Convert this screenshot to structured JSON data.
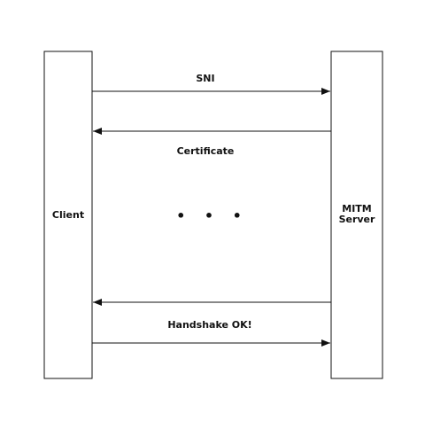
{
  "diagram": {
    "participants": {
      "client": "Client",
      "server_line1": "MITM",
      "server_line2": "Server"
    },
    "messages": [
      {
        "label": "SNI",
        "from": "client",
        "to": "server"
      },
      {
        "label": "Certificate",
        "from": "server",
        "to": "client"
      },
      {
        "label": "",
        "from": "server",
        "to": "client"
      },
      {
        "label": "Handshake OK!",
        "from": "client",
        "to": "server"
      }
    ],
    "ellipsis": "• • •",
    "colors": {
      "stroke": "#111111",
      "background": "#ffffff"
    }
  }
}
